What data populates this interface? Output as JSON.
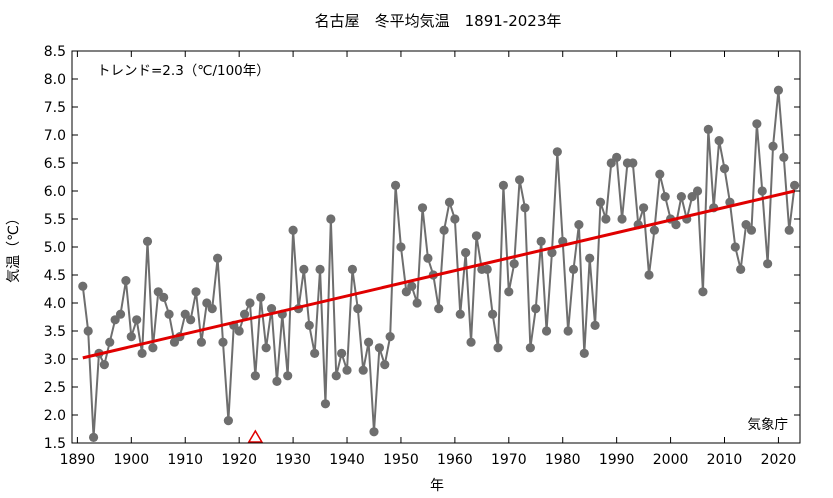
{
  "chart_data": {
    "type": "line",
    "title": "名古屋　冬平均気温　1891-2023年",
    "xlabel": "年",
    "ylabel": "気温（℃）",
    "xlim": [
      1889,
      2024
    ],
    "ylim": [
      1.5,
      8.5
    ],
    "xticks": [
      1890,
      1900,
      1910,
      1920,
      1930,
      1940,
      1950,
      1960,
      1970,
      1980,
      1990,
      2000,
      2010,
      2020
    ],
    "yticks": [
      "1.5",
      "2.0",
      "2.5",
      "3.0",
      "3.5",
      "4.0",
      "4.5",
      "5.0",
      "5.5",
      "6.0",
      "6.5",
      "7.0",
      "7.5",
      "8.0",
      "8.5"
    ],
    "grid": false,
    "trend_label": "トレンド=2.3（℃/100年）",
    "credit": "気象庁",
    "colors": {
      "series": "#6e6e6e",
      "trend": "#e00000",
      "marker": "#e00000"
    },
    "series": [
      {
        "start_year": 1891,
        "values": [
          4.3,
          3.5,
          1.6,
          3.1,
          2.9,
          3.3,
          3.7,
          3.8,
          4.4,
          3.4,
          3.7,
          3.1,
          5.1,
          3.2,
          4.2,
          4.1,
          3.8,
          3.3,
          3.4,
          3.8,
          3.7,
          4.2,
          3.3,
          4.0,
          3.9,
          4.8,
          3.3,
          1.9,
          3.6,
          3.5,
          3.8,
          4.0,
          2.7,
          4.1,
          3.2,
          3.9,
          2.6,
          3.8,
          2.7,
          5.3,
          3.9,
          4.6,
          3.6,
          3.1,
          4.6,
          2.2,
          5.5,
          2.7,
          3.1,
          2.8,
          4.6,
          3.9,
          2.8,
          3.3,
          1.7,
          3.2,
          2.9,
          3.4,
          6.1,
          5.0,
          4.2,
          4.3,
          4.0,
          5.7,
          4.8,
          4.5,
          3.9,
          5.3,
          5.8,
          5.5,
          3.8,
          4.9,
          3.3,
          5.2,
          4.6,
          4.6,
          3.8,
          3.2,
          6.1,
          4.2,
          4.7,
          6.2,
          5.7,
          3.2,
          3.9,
          5.1,
          3.5,
          4.9,
          6.7,
          5.1,
          3.5,
          4.6,
          5.4,
          3.1,
          4.8,
          3.6,
          5.8,
          5.5,
          6.5,
          6.6,
          5.5,
          6.5,
          6.5,
          5.4,
          5.7,
          4.5,
          5.3,
          6.3,
          5.9,
          5.5,
          5.4,
          5.9,
          5.5,
          5.9,
          6.0,
          4.2,
          7.1,
          5.7,
          6.9,
          6.4,
          5.8,
          5.0,
          4.6,
          5.4,
          5.3,
          7.2,
          6.0,
          4.7,
          6.8,
          7.8,
          6.6,
          5.3,
          6.1
        ]
      }
    ],
    "trend": {
      "x": [
        1891,
        2023
      ],
      "y": [
        3.02,
        6.0
      ]
    },
    "markers": [
      {
        "type": "triangle",
        "x": 1923
      }
    ]
  }
}
